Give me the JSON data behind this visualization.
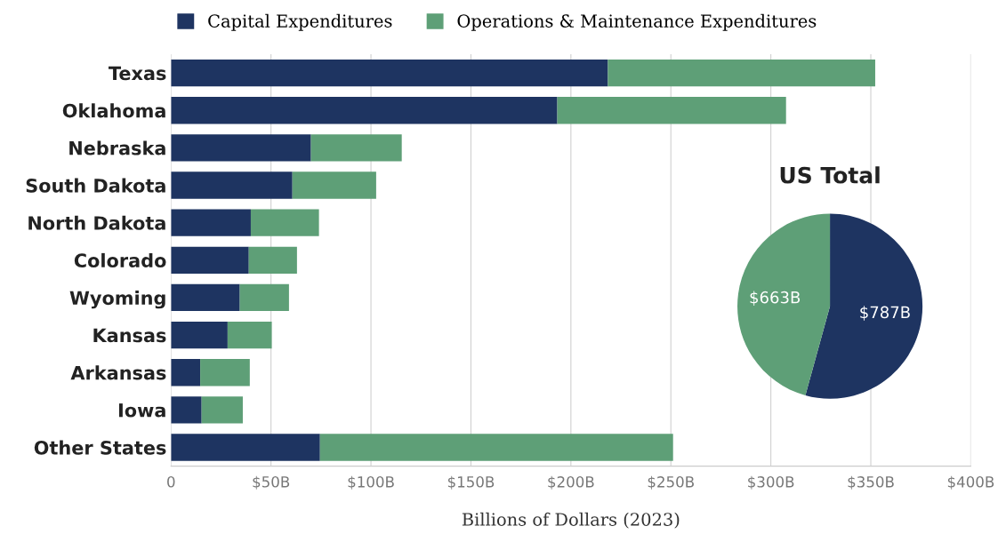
{
  "chart_data": [
    {
      "type": "bar",
      "orientation": "horizontal",
      "stacked": true,
      "xlabel": "Billions of Dollars (2023)",
      "categories": [
        "Texas",
        "Oklahoma",
        "Nebraska",
        "South Dakota",
        "North Dakota",
        "Colorado",
        "Wyoming",
        "Kansas",
        "Arkansas",
        "Iowa",
        "Other States"
      ],
      "series": [
        {
          "name": "Capital Expenditures",
          "color": "#1e3461",
          "values": [
            218.5,
            193.2,
            70.0,
            60.7,
            39.9,
            38.9,
            34.4,
            28.3,
            14.6,
            15.3,
            74.5
          ]
        },
        {
          "name": "Operations & Maintenance Expenditures",
          "color": "#5e9f77",
          "values": [
            133.7,
            114.4,
            45.4,
            41.9,
            34.1,
            24.1,
            24.6,
            22.1,
            24.8,
            20.6,
            176.6
          ]
        }
      ],
      "xlim": [
        0,
        400
      ],
      "xticks": [
        0,
        {
          "value": 50,
          "label": "$50B"
        },
        {
          "value": 100,
          "label": "$100B"
        },
        {
          "value": 150,
          "label": "$150B"
        },
        {
          "value": 200,
          "label": "$200B"
        },
        {
          "value": 250,
          "label": "$250B"
        },
        {
          "value": 300,
          "label": "$300B"
        },
        {
          "value": 350,
          "label": "$350B"
        },
        {
          "value": 400,
          "label": "$400B"
        }
      ],
      "grid": "x",
      "legend": "top"
    },
    {
      "type": "pie",
      "title": "US Total",
      "categories": [
        null,
        null
      ],
      "values": [
        787,
        663
      ],
      "colors": [
        "#1e3461",
        "#5e9f77"
      ],
      "value_labels": [
        "$787B",
        "$663B"
      ]
    }
  ]
}
